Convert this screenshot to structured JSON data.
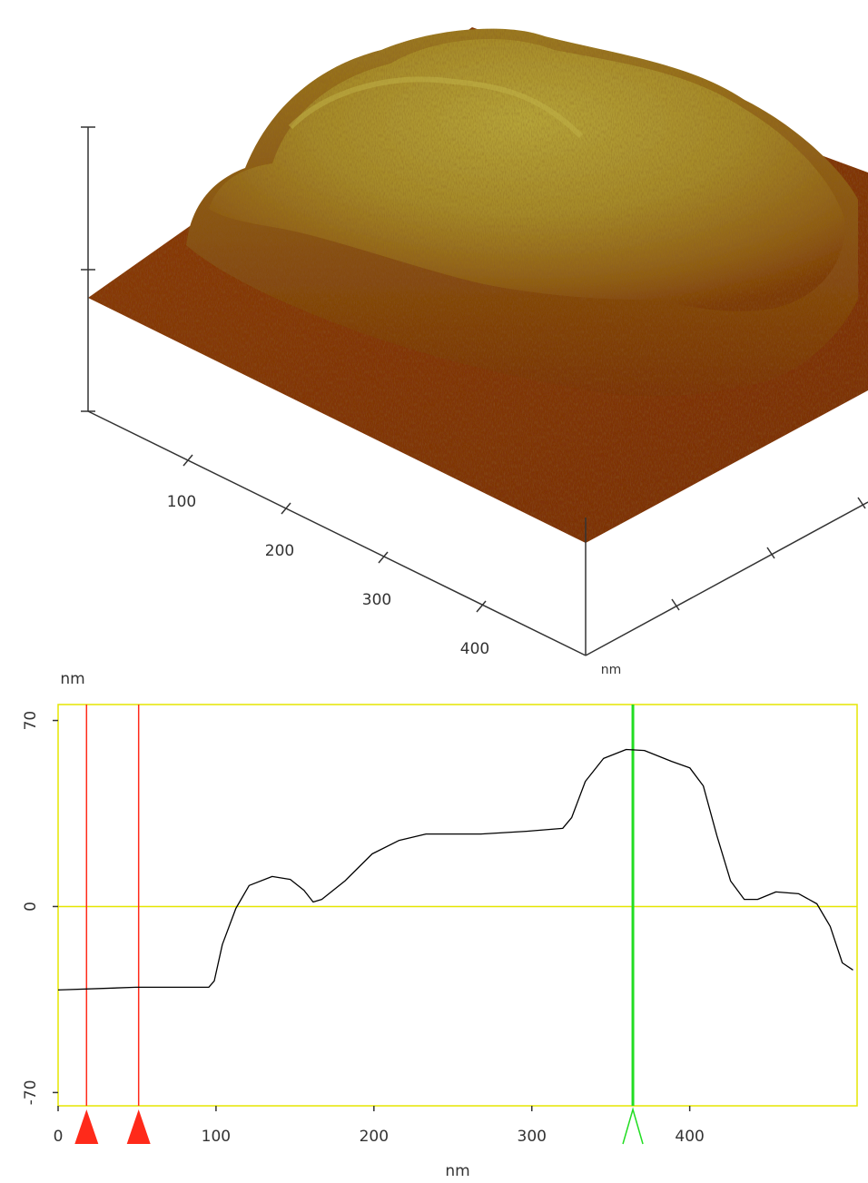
{
  "surface_view": {
    "tick_labels": [
      "100",
      "200",
      "300",
      "400"
    ],
    "unit": "nm"
  },
  "chart_data": {
    "type": "line",
    "x_label": "nm",
    "y_label": "nm",
    "x": [
      0,
      49.4,
      95.4,
      98.9,
      104,
      112.6,
      121,
      135.6,
      147,
      155.7,
      161.5,
      167,
      181.6,
      198.9,
      216,
      233,
      267.8,
      296.6,
      319.5,
      325.3,
      333.9,
      345.4,
      359.8,
      371.3,
      388.5,
      400,
      408.6,
      417.2,
      425.9,
      434.5,
      443,
      454.6,
      469,
      480.5,
      489,
      496.6,
      503.4
    ],
    "values": [
      -31.4,
      -30.4,
      -30.4,
      -28,
      -14.3,
      -0.7,
      7.9,
      11.3,
      10.2,
      6.1,
      1.7,
      2.7,
      9.6,
      19.8,
      24.9,
      27.3,
      27.3,
      28.3,
      29.4,
      33.5,
      47.1,
      55.7,
      59.1,
      58.7,
      54.6,
      52.2,
      45.4,
      26.6,
      9.6,
      2.7,
      2.7,
      5.5,
      4.8,
      1.0,
      -7.5,
      -21.2,
      -23.9
    ],
    "color": "#000000",
    "xlim": [
      0,
      506
    ],
    "ylim": [
      -75,
      76
    ],
    "xticks": [
      0,
      100,
      200,
      300,
      400
    ],
    "yticks": [
      -70,
      0,
      70
    ],
    "reference_line": 0,
    "frame_color": "#e6e600",
    "cursors": [
      {
        "x": 18,
        "color": "#ff2a1a",
        "style": "filled"
      },
      {
        "x": 51,
        "color": "#ff2a1a",
        "style": "filled"
      },
      {
        "x": 364,
        "color": "#22dd22",
        "style": "open"
      }
    ]
  }
}
